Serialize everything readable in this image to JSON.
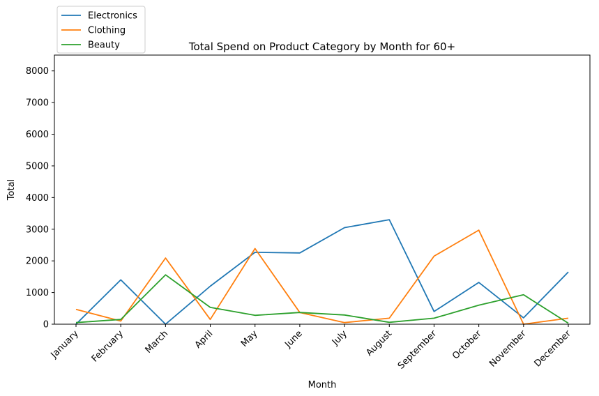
{
  "chart_data": {
    "type": "line",
    "title": "Total Spend on Product Category by Month for 60+",
    "xlabel": "Month",
    "ylabel": "Total",
    "categories": [
      "January",
      "February",
      "March",
      "April",
      "May",
      "June",
      "July",
      "August",
      "September",
      "October",
      "November",
      "December"
    ],
    "ylim": [
      0,
      8500
    ],
    "yticks": [
      0,
      1000,
      2000,
      3000,
      4000,
      5000,
      6000,
      7000,
      8000
    ],
    "grid": false,
    "legend_position": "top-left-outside",
    "series": [
      {
        "name": "Electronics",
        "color": "#1f77b4",
        "values": [
          0,
          1400,
          0,
          1200,
          2270,
          2250,
          3050,
          3300,
          400,
          1320,
          200,
          1650
        ]
      },
      {
        "name": "Clothing",
        "color": "#ff7f0e",
        "values": [
          470,
          100,
          2090,
          150,
          2390,
          370,
          50,
          190,
          2150,
          2970,
          0,
          190
        ]
      },
      {
        "name": "Beauty",
        "color": "#2ca02c",
        "values": [
          50,
          150,
          1560,
          530,
          280,
          370,
          290,
          60,
          190,
          600,
          930,
          30
        ]
      }
    ]
  }
}
